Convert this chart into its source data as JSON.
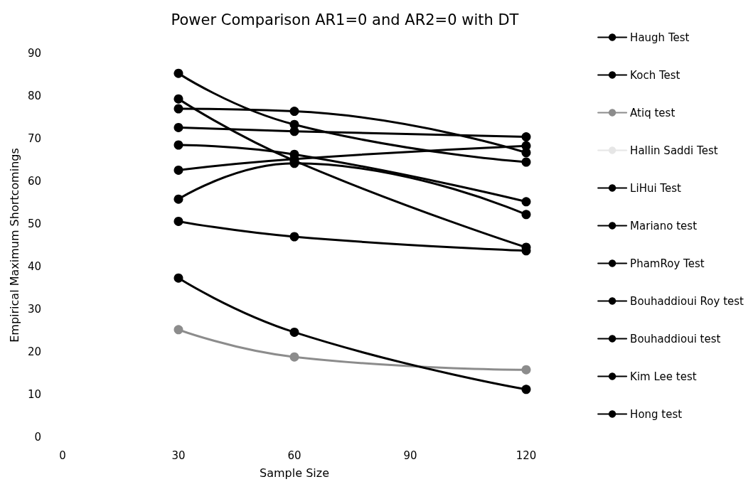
{
  "chart_data": {
    "type": "line",
    "title": "Power Comparison AR1=0 and AR2=0 with DT",
    "xlabel": "Sample Size",
    "ylabel": "Empirical Maximum Shortcomings",
    "x": [
      30,
      60,
      120
    ],
    "series": [
      {
        "name": "Haugh Test",
        "color": "#000000",
        "values": [
          85.3,
          73.3,
          64.5
        ]
      },
      {
        "name": "Koch Test",
        "color": "#000000",
        "values": [
          79.3,
          64.8,
          44.5
        ]
      },
      {
        "name": "Atiq test",
        "color": "#8c8c8c",
        "values": [
          25.2,
          18.8,
          15.8
        ]
      },
      {
        "name": "Hallin Saddi Test",
        "color": "#e6e6e6",
        "values": [
          null,
          null,
          null
        ]
      },
      {
        "name": "LiHui Test",
        "color": "#000000",
        "values": [
          77,
          76.4,
          66.7
        ]
      },
      {
        "name": "Mariano test",
        "color": "#000000",
        "values": [
          72.6,
          71.7,
          70.4
        ]
      },
      {
        "name": "PhamRoy Test",
        "color": "#000000",
        "values": [
          68.5,
          66.3,
          55.2
        ]
      },
      {
        "name": "Bouhaddioui Roy test",
        "color": "#000000",
        "values": [
          62.6,
          65.2,
          68.3
        ]
      },
      {
        "name": "Bouhaddioui test",
        "color": "#000000",
        "values": [
          55.8,
          64.2,
          52.2
        ]
      },
      {
        "name": "Kim Lee test",
        "color": "#000000",
        "values": [
          50.6,
          47,
          43.7
        ]
      },
      {
        "name": "Hong test",
        "color": "#000000",
        "values": [
          37.3,
          24.6,
          11.2
        ]
      }
    ],
    "xlim": [
      0,
      120
    ],
    "xticks": [
      0,
      30,
      60,
      90,
      120
    ],
    "ylim": [
      0,
      90
    ],
    "yticks": [
      0,
      10,
      20,
      30,
      40,
      50,
      60,
      70,
      80,
      90
    ],
    "grid": false,
    "legend": "right",
    "marker": "circle",
    "line_style": "solid"
  }
}
